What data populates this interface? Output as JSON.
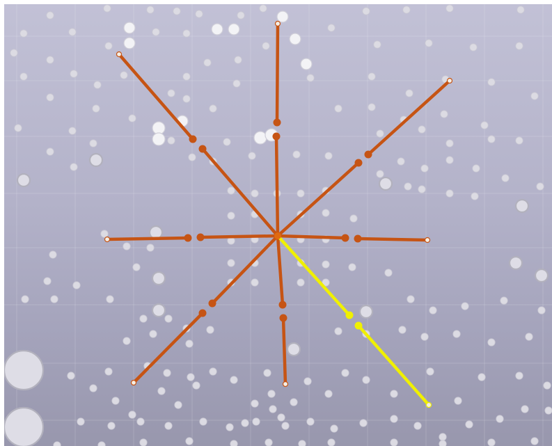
{
  "viewport": {
    "name": "3d-viewport",
    "background_top": "#c2c1d6",
    "background_bottom": "#9897ad"
  },
  "colors": {
    "spoke": "#c65414",
    "spoke_highlight": "#f0f000",
    "endpoint_tip": "#f4efe6",
    "center_joint": "#e06a10"
  },
  "spokes": [
    {
      "id": "spoke-nw",
      "selected": false
    },
    {
      "id": "spoke-n",
      "selected": false
    },
    {
      "id": "spoke-ne",
      "selected": false
    },
    {
      "id": "spoke-w",
      "selected": false
    },
    {
      "id": "spoke-e",
      "selected": false
    },
    {
      "id": "spoke-sw",
      "selected": false
    },
    {
      "id": "spoke-s",
      "selected": false
    },
    {
      "id": "spoke-se",
      "selected": true
    }
  ]
}
